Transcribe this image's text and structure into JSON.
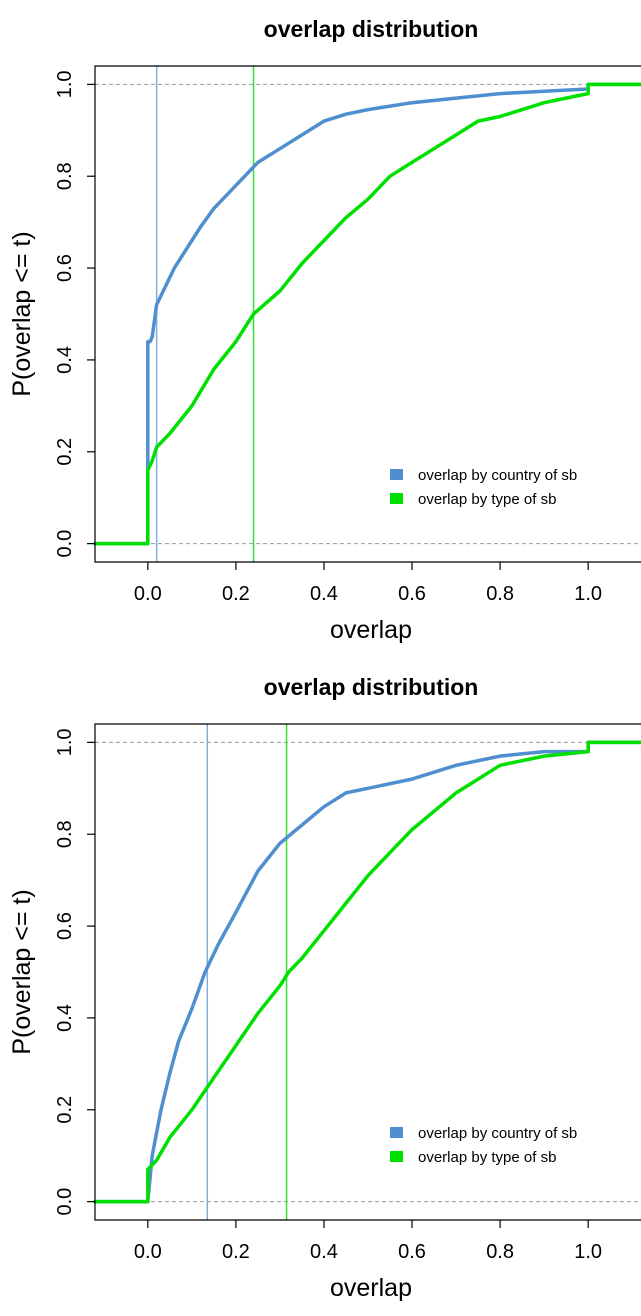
{
  "chart_data": [
    {
      "type": "line",
      "title": "overlap distribution",
      "xlabel": "overlap",
      "ylabel": "P(overlap <= t)",
      "xlim": [
        -0.12,
        1.12
      ],
      "ylim": [
        -0.04,
        1.04
      ],
      "xticks": [
        "0.0",
        "0.2",
        "0.4",
        "0.6",
        "0.8",
        "1.0"
      ],
      "yticks": [
        "0.0",
        "0.2",
        "0.4",
        "0.6",
        "0.8",
        "1.0"
      ],
      "reference_lines_y": [
        0,
        1
      ],
      "legend_position": "bottom-right",
      "series": [
        {
          "name": "overlap by country of sb",
          "color": "#4f8fcf",
          "x": [
            -0.12,
            0,
            0,
            0.005,
            0.01,
            0.02,
            0.04,
            0.06,
            0.08,
            0.1,
            0.12,
            0.15,
            0.2,
            0.25,
            0.3,
            0.35,
            0.4,
            0.45,
            0.5,
            0.6,
            0.7,
            0.8,
            0.9,
            1.0,
            1.0,
            1.12
          ],
          "y": [
            0,
            0,
            0.44,
            0.44,
            0.45,
            0.52,
            0.56,
            0.6,
            0.63,
            0.66,
            0.69,
            0.73,
            0.78,
            0.83,
            0.86,
            0.89,
            0.92,
            0.935,
            0.945,
            0.96,
            0.97,
            0.98,
            0.985,
            0.99,
            1,
            1
          ],
          "median_line_x": 0.02,
          "median_line_color": "#7fb0dc"
        },
        {
          "name": "overlap by type of sb",
          "color": "#00e000",
          "x": [
            -0.12,
            0,
            0,
            0.01,
            0.02,
            0.05,
            0.1,
            0.15,
            0.2,
            0.24,
            0.3,
            0.35,
            0.4,
            0.45,
            0.5,
            0.55,
            0.6,
            0.65,
            0.7,
            0.75,
            0.8,
            0.9,
            0.95,
            1.0,
            1.0,
            1.12
          ],
          "y": [
            0,
            0,
            0.16,
            0.18,
            0.21,
            0.24,
            0.3,
            0.38,
            0.44,
            0.5,
            0.55,
            0.61,
            0.66,
            0.71,
            0.75,
            0.8,
            0.83,
            0.86,
            0.89,
            0.92,
            0.93,
            0.96,
            0.97,
            0.98,
            1,
            1
          ],
          "median_line_x": 0.24,
          "median_line_color": "#33e033"
        }
      ]
    },
    {
      "type": "line",
      "title": "overlap distribution",
      "xlabel": "overlap",
      "ylabel": "P(overlap <= t)",
      "xlim": [
        -0.12,
        1.12
      ],
      "ylim": [
        -0.04,
        1.04
      ],
      "xticks": [
        "0.0",
        "0.2",
        "0.4",
        "0.6",
        "0.8",
        "1.0"
      ],
      "yticks": [
        "0.0",
        "0.2",
        "0.4",
        "0.6",
        "0.8",
        "1.0"
      ],
      "reference_lines_y": [
        0,
        1
      ],
      "legend_position": "bottom-right",
      "series": [
        {
          "name": "overlap by country of sb",
          "color": "#4f8fcf",
          "x": [
            -0.12,
            0,
            0.005,
            0.01,
            0.02,
            0.03,
            0.05,
            0.07,
            0.1,
            0.13,
            0.16,
            0.2,
            0.25,
            0.3,
            0.35,
            0.4,
            0.45,
            0.5,
            0.6,
            0.7,
            0.8,
            0.9,
            1.0,
            1.0,
            1.12
          ],
          "y": [
            0,
            0,
            0.05,
            0.1,
            0.15,
            0.2,
            0.28,
            0.35,
            0.42,
            0.5,
            0.56,
            0.63,
            0.72,
            0.78,
            0.82,
            0.86,
            0.89,
            0.9,
            0.92,
            0.95,
            0.97,
            0.98,
            0.98,
            1,
            1
          ],
          "median_line_x": 0.135,
          "median_line_color": "#7fb0dc"
        },
        {
          "name": "overlap by type of sb",
          "color": "#00e000",
          "x": [
            -0.12,
            0,
            0,
            0.02,
            0.05,
            0.1,
            0.15,
            0.2,
            0.25,
            0.3,
            0.32,
            0.35,
            0.4,
            0.45,
            0.5,
            0.55,
            0.6,
            0.65,
            0.7,
            0.75,
            0.8,
            0.9,
            1.0,
            1.0,
            1.12
          ],
          "y": [
            0,
            0,
            0.07,
            0.09,
            0.14,
            0.2,
            0.27,
            0.34,
            0.41,
            0.47,
            0.5,
            0.53,
            0.59,
            0.65,
            0.71,
            0.76,
            0.81,
            0.85,
            0.89,
            0.92,
            0.95,
            0.97,
            0.98,
            1,
            1
          ],
          "median_line_x": 0.315,
          "median_line_color": "#33e033"
        }
      ]
    }
  ]
}
